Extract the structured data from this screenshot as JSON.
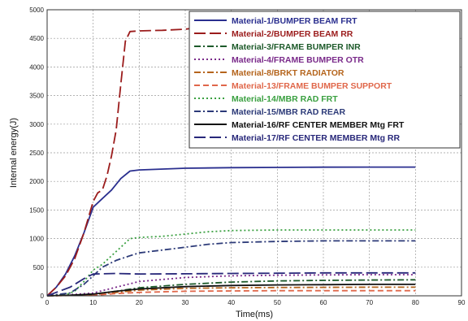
{
  "chart_data": {
    "type": "line",
    "title": "",
    "xlabel": "Time(ms)",
    "ylabel": "Internal energy(J)",
    "xlim": [
      0,
      90
    ],
    "ylim": [
      0,
      5000
    ],
    "x_ticks": [
      0,
      10,
      20,
      30,
      40,
      50,
      60,
      70,
      80,
      90
    ],
    "y_ticks": [
      0,
      500,
      1000,
      1500,
      2000,
      2500,
      3000,
      3500,
      4000,
      4500,
      5000
    ],
    "grid": true,
    "legend_position": "top-right",
    "series": [
      {
        "name": "Material-1/BUMPER BEAM FRT",
        "color": "#2a2f8f",
        "dash": "solid",
        "x": [
          0,
          2,
          4,
          6,
          8,
          10,
          12,
          14,
          16,
          18,
          20,
          30,
          40,
          50,
          60,
          70,
          80
        ],
        "y": [
          0,
          150,
          380,
          700,
          1100,
          1550,
          1700,
          1850,
          2050,
          2180,
          2200,
          2230,
          2240,
          2245,
          2248,
          2250,
          2250
        ]
      },
      {
        "name": "Material-2/BUMPER BEAM RR",
        "color": "#9b1c1c",
        "dash": "longdash",
        "x": [
          0,
          2,
          4,
          6,
          8,
          10,
          11,
          12,
          13,
          14,
          15,
          16,
          17,
          18,
          20,
          25,
          30,
          32
        ],
        "y": [
          0,
          150,
          350,
          650,
          1100,
          1650,
          1800,
          1850,
          2100,
          2450,
          2900,
          3700,
          4450,
          4620,
          4630,
          4640,
          4660,
          4680
        ]
      },
      {
        "name": "Material-3/FRAME BUMPER INR",
        "color": "#1d5a2a",
        "dash": "dashdot",
        "x": [
          0,
          5,
          10,
          15,
          20,
          30,
          40,
          50,
          60,
          70,
          80
        ],
        "y": [
          0,
          10,
          30,
          80,
          140,
          200,
          240,
          260,
          270,
          275,
          280
        ]
      },
      {
        "name": "Material-4/FRAME BUMPER OTR",
        "color": "#7a2a8a",
        "dash": "dot",
        "x": [
          0,
          5,
          10,
          15,
          20,
          30,
          40,
          50,
          60,
          70,
          80
        ],
        "y": [
          0,
          20,
          50,
          150,
          250,
          320,
          350,
          360,
          365,
          370,
          370
        ]
      },
      {
        "name": "Material-8/BRKT RADIATOR",
        "color": "#b5651d",
        "dash": "dashdot",
        "x": [
          0,
          5,
          10,
          15,
          20,
          30,
          40,
          50,
          60,
          70,
          80
        ],
        "y": [
          0,
          5,
          20,
          60,
          100,
          130,
          140,
          145,
          148,
          150,
          150
        ]
      },
      {
        "name": "Material-13/FRAME BUMPER SUPPORT",
        "color": "#e0674a",
        "dash": "dash",
        "x": [
          0,
          5,
          10,
          15,
          20,
          30,
          40,
          50,
          60,
          70,
          80
        ],
        "y": [
          0,
          5,
          10,
          40,
          60,
          80,
          85,
          90,
          90,
          90,
          90
        ]
      },
      {
        "name": "Material-14/MBR RAD FRT",
        "color": "#3aa040",
        "dash": "dot",
        "x": [
          0,
          4,
          6,
          8,
          10,
          12,
          14,
          16,
          18,
          20,
          25,
          30,
          35,
          40,
          50,
          60,
          70,
          80
        ],
        "y": [
          0,
          20,
          80,
          250,
          450,
          550,
          700,
          850,
          1000,
          1020,
          1040,
          1080,
          1120,
          1140,
          1150,
          1150,
          1150,
          1150
        ]
      },
      {
        "name": "Material-15/MBR RAD REAR",
        "color": "#2c3a78",
        "dash": "dashdot",
        "x": [
          0,
          5,
          8,
          10,
          12,
          15,
          18,
          20,
          25,
          30,
          35,
          40,
          50,
          60,
          70,
          80
        ],
        "y": [
          0,
          50,
          200,
          350,
          500,
          620,
          700,
          750,
          800,
          850,
          900,
          930,
          950,
          960,
          960,
          960
        ]
      },
      {
        "name": "Material-16/RF CENTER MEMBER Mtg FRT",
        "color": "#111111",
        "dash": "solid",
        "x": [
          0,
          5,
          10,
          15,
          20,
          30,
          40,
          50,
          60,
          70,
          80
        ],
        "y": [
          0,
          10,
          30,
          80,
          120,
          160,
          180,
          190,
          195,
          200,
          200
        ]
      },
      {
        "name": "Material-17/RF CENTER MEMBER Mtg RR",
        "color": "#28287a",
        "dash": "longdash",
        "x": [
          0,
          5,
          8,
          10,
          15,
          20,
          30,
          40,
          50,
          60,
          70,
          80
        ],
        "y": [
          0,
          150,
          300,
          380,
          390,
          380,
          385,
          390,
          395,
          400,
          400,
          400
        ]
      }
    ]
  }
}
